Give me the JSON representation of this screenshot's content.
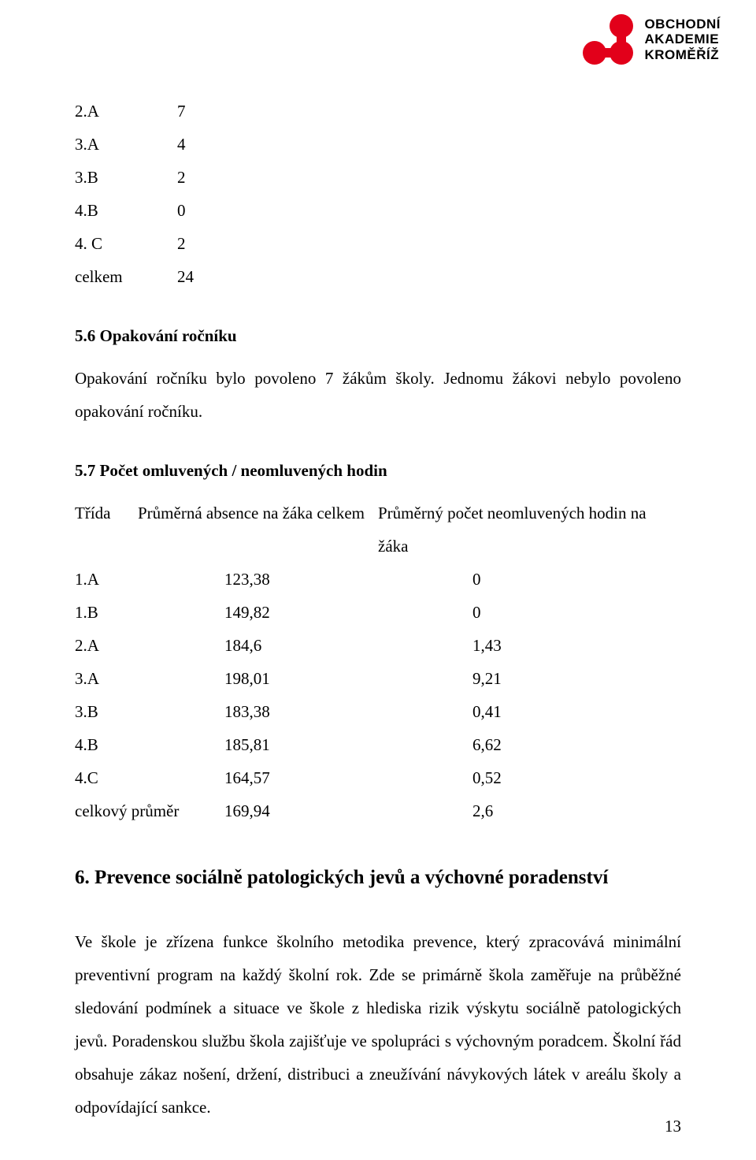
{
  "logo": {
    "line1": "OBCHODNÍ",
    "line2": "AKADEMIE",
    "line3": "KROMĚŘÍŽ",
    "brand_color": "#e2001a"
  },
  "table_small": {
    "rows": [
      {
        "label": "2.A",
        "value": "7"
      },
      {
        "label": "3.A",
        "value": "4"
      },
      {
        "label": "3.B",
        "value": "2"
      },
      {
        "label": "4.B",
        "value": "0"
      },
      {
        "label": "4. C",
        "value": "2"
      },
      {
        "label": "celkem",
        "value": "24"
      }
    ]
  },
  "section_5_6": {
    "heading": "5.6 Opakování ročníku",
    "paragraph": "Opakování ročníku bylo povoleno 7 žákům školy. Jednomu žákovi nebylo povoleno opakování ročníku."
  },
  "section_5_7": {
    "heading": "5.7 Počet omluvených / neomluvených hodin",
    "table": {
      "type": "table",
      "columns": [
        "Třída",
        "Průměrná absence na žáka celkem",
        "Průměrný počet neomluvených hodin na žáka"
      ],
      "rows": [
        [
          "1.A",
          "123,38",
          "0"
        ],
        [
          "1.B",
          "149,82",
          "0"
        ],
        [
          "2.A",
          "184,6",
          "1,43"
        ],
        [
          "3.A",
          "198,01",
          "9,21"
        ],
        [
          "3.B",
          "183,38",
          "0,41"
        ],
        [
          "4.B",
          "185,81",
          "6,62"
        ],
        [
          "4.C",
          "164,57",
          "0,52"
        ],
        [
          "celkový průměr",
          "169,94",
          "2,6"
        ]
      ],
      "font_size_pt": 16,
      "text_color": "#000000",
      "background_color": "#ffffff"
    }
  },
  "section_6": {
    "heading": "6. Prevence sociálně patologických jevů a výchovné poradenství",
    "paragraph": "Ve škole je zřízena funkce školního metodika prevence, který zpracovává minimální preventivní program na každý školní rok.  Zde se primárně škola zaměřuje na průběžné sledování podmínek a situace ve škole z hlediska rizik výskytu sociálně patologických jevů. Poradenskou službu škola zajišťuje ve spolupráci s výchovným poradcem. Školní řád obsahuje zákaz nošení, držení, distribuci a zneužívání návykových látek v areálu školy a odpovídající sankce."
  },
  "page_number": "13"
}
